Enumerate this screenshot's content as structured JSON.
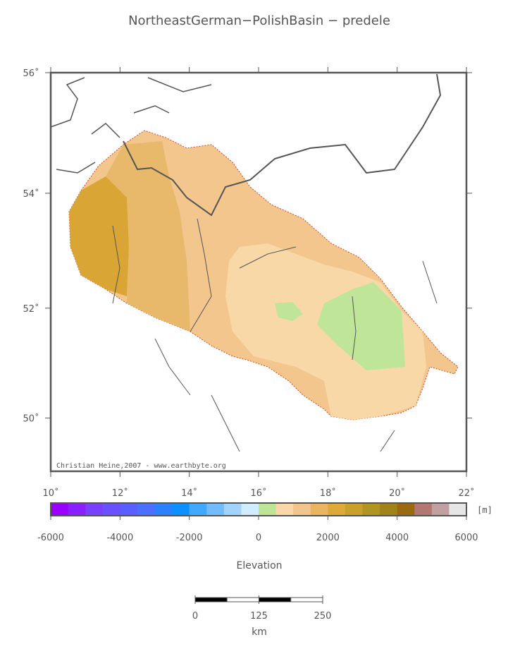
{
  "title": "NortheastGerman−PolishBasin − predele",
  "map": {
    "xlim": [
      10,
      22
    ],
    "ylim": [
      49,
      56
    ],
    "xticks": [
      {
        "value": 10,
        "label": "10˚"
      },
      {
        "value": 12,
        "label": "12˚"
      },
      {
        "value": 14,
        "label": "14˚"
      },
      {
        "value": 16,
        "label": "16˚"
      },
      {
        "value": 18,
        "label": "18˚"
      },
      {
        "value": 20,
        "label": "20˚"
      },
      {
        "value": 22,
        "label": "22˚"
      }
    ],
    "yticks": [
      {
        "value": 56,
        "label": "56˚"
      },
      {
        "value": 54,
        "label": "54˚"
      },
      {
        "value": 52,
        "label": "52˚"
      },
      {
        "value": 50,
        "label": "50˚"
      }
    ],
    "credit": "Christian Heine,2007 - www.earthbyte.org"
  },
  "colorbar": {
    "lim": [
      -6000,
      6000
    ],
    "ticks": [
      -6000,
      -4000,
      -2000,
      0,
      2000,
      4000,
      6000
    ],
    "unit": "[m]",
    "label": "Elevation",
    "colors": [
      "#9a00ff",
      "#8a20ff",
      "#7a40ff",
      "#6a50ff",
      "#5a60ff",
      "#4a70ff",
      "#2a80ff",
      "#0a90ff",
      "#40a8ff",
      "#70bcff",
      "#a0d4ff",
      "#d0ecff",
      "#bde598",
      "#f9d7a8",
      "#f2c58c",
      "#e8b560",
      "#ddaa3a",
      "#c9a02a",
      "#b09620",
      "#a0841a",
      "#9a6a10",
      "#b07870",
      "#c0a0a0",
      "#e6e6e6"
    ]
  },
  "scalebar": {
    "lim": [
      0,
      250
    ],
    "ticks": [
      0,
      125,
      250
    ],
    "unit": "km"
  }
}
